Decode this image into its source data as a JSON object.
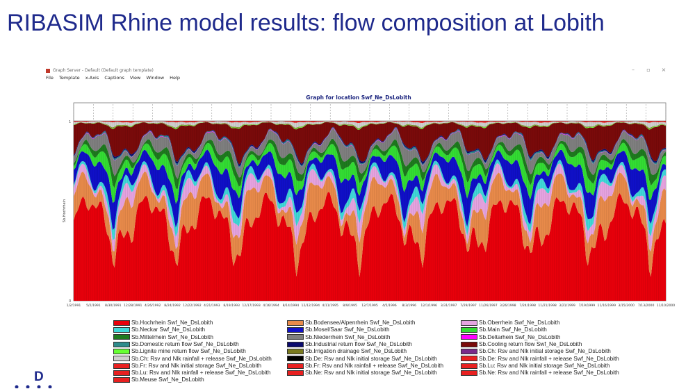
{
  "slide": {
    "title": "RIBASIM Rhine model results: flow composition at Lobith",
    "logo_text": "D"
  },
  "window": {
    "title": "Graph Server - Default (Default graph template)",
    "menu": [
      "File",
      "Template",
      "x-Axis",
      "Captions",
      "View",
      "Window",
      "Help"
    ]
  },
  "chart_data": {
    "type": "area",
    "stacked": true,
    "normalized": true,
    "title": "Graph for location Swf_Ne_DsLobith",
    "ylabel": "Sb.Hochrhein",
    "ylim": [
      0,
      1
    ],
    "yticks": [
      "0",
      "1"
    ],
    "x_tick_labels": [
      "1/2/1991",
      "5/2/1991",
      "8/30/1991",
      "12/28/1991",
      "4/26/1992",
      "8/24/1992",
      "12/22/1992",
      "4/21/1993",
      "8/19/1993",
      "12/17/1993",
      "4/16/1994",
      "8/14/1994",
      "12/12/1994",
      "4/11/1995",
      "8/9/1995",
      "12/7/1995",
      "4/5/1996",
      "8/3/1996",
      "12/1/1996",
      "3/31/1997",
      "7/29/1997",
      "11/26/1997",
      "3/26/1998",
      "7/24/1998",
      "11/21/1998",
      "3/21/1999",
      "7/19/1999",
      "11/16/1999",
      "3/15/2000",
      "7/13/2000",
      "11/10/2000"
    ],
    "series": [
      {
        "name": "Sb.Hochrhein Swf_Ne_DsLobith",
        "color": "#e8000b",
        "mean": 0.45
      },
      {
        "name": "Sb.Bodensee/Alpenrhein Swf_Ne_DsLobith",
        "color": "#e88a4a",
        "mean": 0.12
      },
      {
        "name": "Sb.Oberrhein Swf_Ne_DsLobith",
        "color": "#e6a3e0",
        "mean": 0.05
      },
      {
        "name": "Sb.Neckar Swf_Ne_DsLobith",
        "color": "#3fd8d8",
        "mean": 0.03
      },
      {
        "name": "Sb.Mosel/Saar Swf_Ne_DsLobith",
        "color": "#1010c8",
        "mean": 0.09
      },
      {
        "name": "Sb.Main Swf_Ne_DsLobith",
        "color": "#33dd33",
        "mean": 0.05
      },
      {
        "name": "Sb.Mittelrhein Swf_Ne_DsLobith",
        "color": "#1e7a1e",
        "mean": 0.03
      },
      {
        "name": "Sb.Niederrhein Swf_Ne_DsLobith",
        "color": "#7f7f7f",
        "mean": 0.05
      },
      {
        "name": "Sb.Deltarhein Swf_Ne_DsLobith",
        "color": "#ff00ff",
        "mean": 0.002
      },
      {
        "name": "Sb.Domestic return flow Swf_Ne_DsLobith",
        "color": "#2e8b8b",
        "mean": 0.005
      },
      {
        "name": "Sb.Industrial return flow Swf_Ne_DsLobith",
        "color": "#0a0a6e",
        "mean": 0.005
      },
      {
        "name": "Sb.Cooling return flow Swf_Ne_DsLobith",
        "color": "#7a0a0a",
        "mean": 0.1
      },
      {
        "name": "Sb.Lignite mine return flow Swf_Ne_DsLobith",
        "color": "#66ff33",
        "mean": 0.002
      },
      {
        "name": "Sb.Irrigation drainage Swf_Ne_DsLobith",
        "color": "#7a7a1e",
        "mean": 0.002
      },
      {
        "name": "Sb.Ch: Rsv and Nlk initial storage Swf_Ne_DsLobith",
        "color": "#7a2a8a",
        "mean": 0.0
      },
      {
        "name": "Sb.Ch: Rsv and Nlk rainfall + release Swf_Ne_DsLobith",
        "color": "#d0d0d0",
        "mean": 0.012
      },
      {
        "name": "Sb.De: Rsv and Nlk initial storage Swf_Ne_DsLobith",
        "color": "#000000",
        "mean": 0.0
      },
      {
        "name": "Sb.De: Rsv and Nlk rainfall + release Swf_Ne_DsLobith",
        "color": "#e82020",
        "mean": 0.005
      },
      {
        "name": "Sb.Fr: Rsv and Nlk initial storage Swf_Ne_DsLobith",
        "color": "#e82020",
        "mean": 0.0
      },
      {
        "name": "Sb.Fr: Rsv and Nlk rainfall + release Swf_Ne_DsLobith",
        "color": "#e82020",
        "mean": 0.0
      },
      {
        "name": "Sb.Lu: Rsv and Nlk initial storage Swf_Ne_DsLobith",
        "color": "#e82020",
        "mean": 0.0
      },
      {
        "name": "Sb.Lu: Rsv and Nlk rainfall + release Swf_Ne_DsLobith",
        "color": "#e82020",
        "mean": 0.0
      },
      {
        "name": "Sb.Ne: Rsv and Nlk initial storage Swf_Ne_DsLobith",
        "color": "#e82020",
        "mean": 0.0
      },
      {
        "name": "Sb.Ne: Rsv and Nlk rainfall + release Swf_Ne_DsLobith",
        "color": "#e82020",
        "mean": 0.0
      },
      {
        "name": "Sb.Meuse Swf_Ne_DsLobith",
        "color": "#e82020",
        "mean": 0.0
      }
    ],
    "grid": true,
    "legend_position": "bottom"
  }
}
